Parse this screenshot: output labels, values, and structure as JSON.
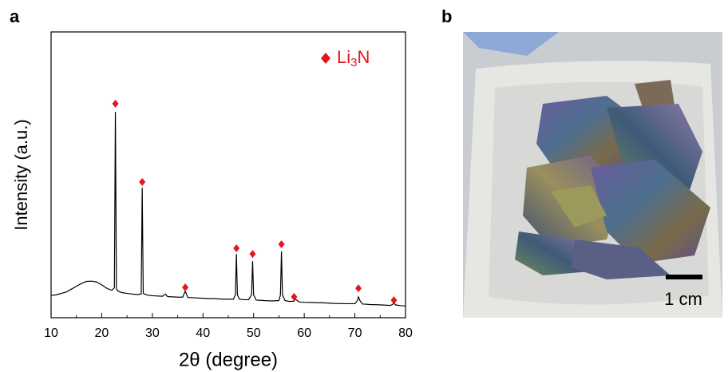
{
  "panel_labels": [
    "a",
    "b"
  ],
  "photo": {
    "scale_bar": "1 cm"
  },
  "chart_data": {
    "type": "line",
    "ylabel": "Intensity (a.u.)",
    "xlabel": "2θ (degree)",
    "xlim": [
      10,
      80
    ],
    "xticks": [
      10,
      20,
      30,
      40,
      50,
      60,
      70,
      80
    ],
    "xminor_ticks": [
      15,
      25,
      35,
      45,
      55,
      65,
      75
    ],
    "ylim": [
      0,
      100
    ],
    "legend": "top-right",
    "x": [
      10,
      11,
      12,
      13,
      14,
      15,
      16,
      17,
      18,
      19,
      20,
      21,
      22,
      22.5,
      22.7,
      22.9,
      23.3,
      24,
      25,
      26,
      27,
      27.8,
      28,
      28.2,
      29,
      30,
      31,
      32,
      32.6,
      33,
      34,
      35,
      36,
      36.5,
      37,
      38,
      39,
      40,
      41,
      42,
      43,
      44,
      45,
      46,
      46.4,
      46.6,
      46.8,
      47.2,
      48,
      49,
      49.6,
      49.8,
      50,
      50.5,
      51,
      52,
      53,
      54,
      55,
      55.3,
      55.5,
      55.7,
      56.2,
      57,
      58,
      58.2,
      59,
      60,
      62,
      64,
      66,
      68,
      70,
      70.5,
      70.7,
      71,
      71.5,
      73,
      75,
      77,
      77.5,
      77.7,
      78,
      79,
      80
    ],
    "pattern": {
      "color": "#000000",
      "values": [
        7.8,
        8.0,
        8.5,
        9.0,
        10.0,
        11.0,
        12.0,
        12.7,
        12.8,
        12.5,
        11.5,
        10.3,
        9.6,
        10.5,
        72,
        10,
        9.2,
        8.8,
        8.5,
        8.3,
        8.1,
        8.3,
        45.5,
        8.5,
        7.9,
        7.7,
        7.6,
        7.5,
        8.3,
        7.4,
        7.3,
        7.2,
        7.2,
        9.3,
        7.1,
        7.0,
        6.9,
        6.8,
        6.7,
        6.7,
        6.6,
        6.5,
        6.5,
        6.5,
        8,
        22.3,
        8,
        6.5,
        6.3,
        6.3,
        8,
        19.8,
        8,
        6.2,
        6.1,
        6.0,
        5.9,
        5.9,
        6.0,
        8,
        23.2,
        8,
        6,
        5.7,
        5.8,
        6.6,
        5.5,
        5.4,
        5.3,
        5.2,
        5.0,
        4.9,
        4.9,
        6,
        7.3,
        6,
        4.8,
        4.6,
        4.5,
        4.3,
        4.7,
        5.3,
        4.5,
        4.2,
        4.1
      ]
    },
    "markers": {
      "name": "Li3N",
      "color": "#e8141c",
      "x": [
        22.7,
        28,
        36.5,
        46.6,
        49.8,
        55.5,
        58,
        70.7,
        77.7
      ],
      "values": [
        74.9,
        47.5,
        10.6,
        24.3,
        22.3,
        25.7,
        7.3,
        10.3,
        6.1
      ]
    }
  }
}
